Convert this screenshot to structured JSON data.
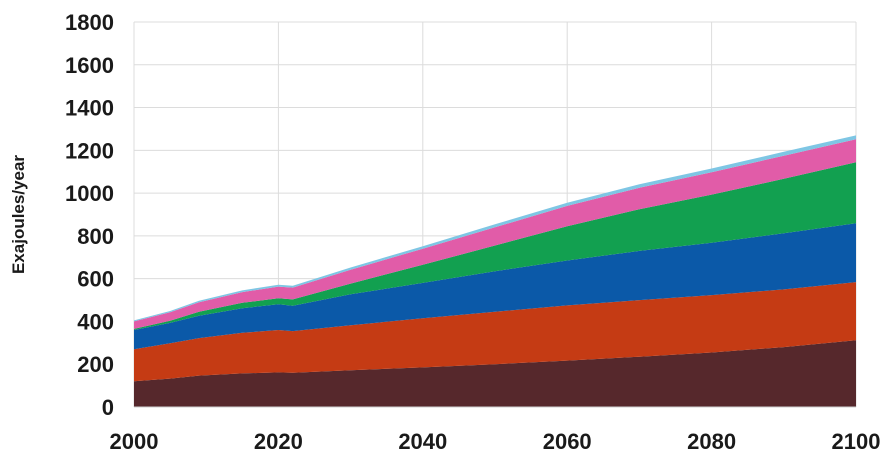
{
  "chart_data": {
    "type": "area",
    "stacked": true,
    "title": "",
    "xlabel": "",
    "ylabel": "Exajoules/year",
    "xlim": [
      2000,
      2100
    ],
    "ylim": [
      0,
      1800
    ],
    "xticks": [
      "2000",
      "2020",
      "2040",
      "2060",
      "2080",
      "2100"
    ],
    "yticks": [
      "0",
      "200",
      "400",
      "600",
      "800",
      "1000",
      "1200",
      "1400",
      "1600",
      "1800"
    ],
    "grid": true,
    "legend": "none",
    "x": [
      2000,
      2005,
      2009,
      2015,
      2020,
      2022,
      2030,
      2040,
      2050,
      2060,
      2070,
      2080,
      2090,
      2100
    ],
    "series": [
      {
        "color": "#56282c",
        "values": [
          120,
          133,
          147,
          157,
          162,
          160,
          172,
          185,
          200,
          217,
          235,
          255,
          280,
          312
        ]
      },
      {
        "color": "#c53b14",
        "values": [
          150,
          165,
          175,
          190,
          198,
          195,
          210,
          230,
          245,
          258,
          265,
          268,
          270,
          272
        ]
      },
      {
        "color": "#0b59a8",
        "values": [
          90,
          95,
          105,
          115,
          120,
          118,
          145,
          165,
          190,
          210,
          230,
          245,
          262,
          275
        ]
      },
      {
        "color": "#12a050",
        "values": [
          5,
          10,
          18,
          25,
          28,
          30,
          50,
          85,
          120,
          160,
          195,
          225,
          255,
          285
        ]
      },
      {
        "color": "#e15ca8",
        "values": [
          35,
          40,
          45,
          50,
          55,
          55,
          65,
          75,
          85,
          95,
          100,
          105,
          108,
          108
        ]
      },
      {
        "color": "#7ec6e4",
        "values": [
          5,
          6,
          7,
          8,
          9,
          9,
          10,
          12,
          14,
          15,
          16,
          17,
          18,
          18
        ]
      }
    ]
  }
}
